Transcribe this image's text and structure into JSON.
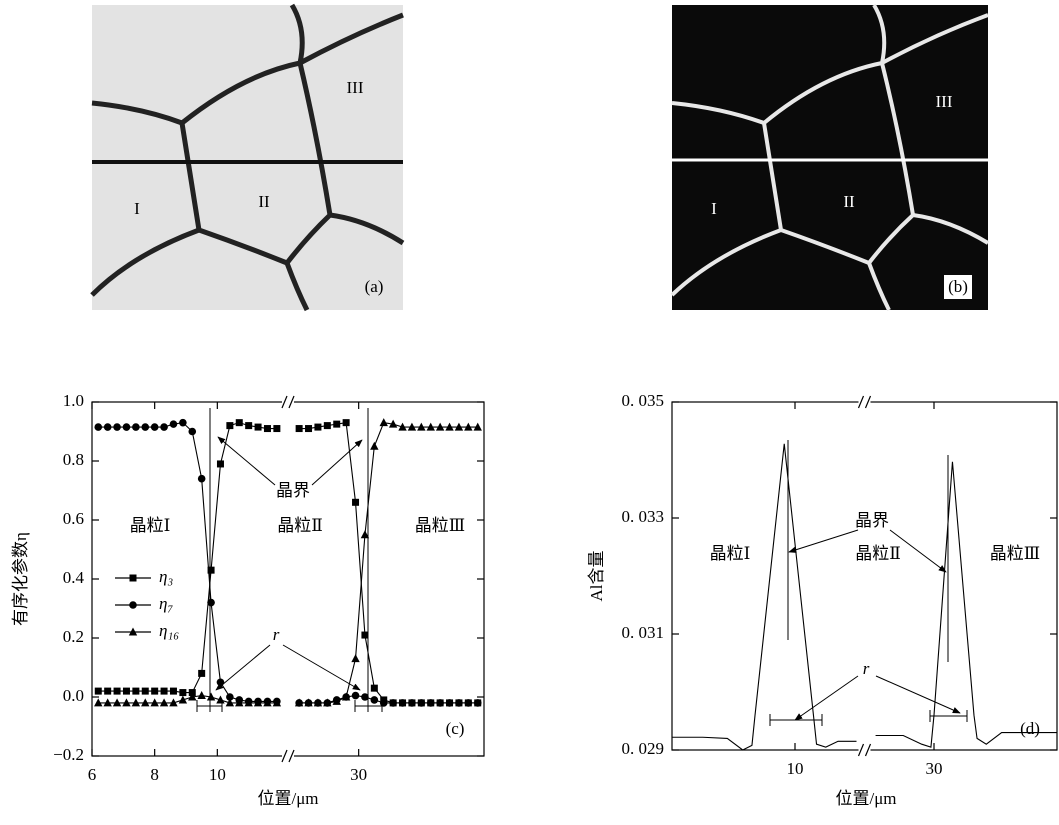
{
  "panels": [
    {
      "label": "(a)",
      "grains": [
        "I",
        "II",
        "III"
      ]
    },
    {
      "label": "(b)",
      "grains": [
        "I",
        "II",
        "III"
      ]
    }
  ],
  "chart_data": [
    {
      "type": "line",
      "panel_label": "(c)",
      "x_label": "位置/μm",
      "y_label": "有序化参数η",
      "xlim": [
        [
          6,
          12
        ],
        [
          28,
          34
        ]
      ],
      "xticks": [
        6,
        8,
        10,
        30
      ],
      "ylim": [
        -0.2,
        1.0
      ],
      "yticks": [
        {
          "value": -0.2,
          "label": "−0.2"
        },
        {
          "value": 0,
          "label": "0.0"
        },
        0.2,
        0.4,
        0.6,
        0.8,
        {
          "value": 1,
          "label": "1.0"
        }
      ],
      "grid": false,
      "boundary_label": "晶界",
      "r_label": "r",
      "grain_labels": [
        "晶粒Ⅰ",
        "晶粒Ⅱ",
        "晶粒Ⅲ"
      ],
      "x": [
        6.2,
        6.5,
        6.8,
        7.1,
        7.4,
        7.7,
        8.0,
        8.3,
        8.6,
        8.9,
        9.2,
        9.5,
        9.8,
        10.1,
        10.4,
        10.7,
        11.0,
        11.3,
        11.6,
        11.9,
        28.1,
        28.4,
        28.7,
        29.0,
        29.3,
        29.6,
        29.9,
        30.2,
        30.5,
        30.8,
        31.1,
        31.4,
        31.7,
        32.0,
        32.3,
        32.6,
        32.9,
        33.2,
        33.5,
        33.8
      ],
      "series": [
        {
          "name": "η₃",
          "color": "#000000",
          "marker": "square",
          "values": [
            0.02,
            0.02,
            0.02,
            0.02,
            0.02,
            0.02,
            0.02,
            0.02,
            0.02,
            0.015,
            0.015,
            0.08,
            0.43,
            0.79,
            0.92,
            0.93,
            0.92,
            0.915,
            0.91,
            0.91,
            0.91,
            0.91,
            0.915,
            0.92,
            0.925,
            0.93,
            0.66,
            0.21,
            0.03,
            -0.01,
            -0.02,
            -0.02,
            -0.02,
            -0.02,
            -0.02,
            -0.02,
            -0.02,
            -0.02,
            -0.02,
            -0.02
          ]
        },
        {
          "name": "η₇",
          "color": "#000000",
          "marker": "circle",
          "values": [
            0.915,
            0.915,
            0.915,
            0.915,
            0.915,
            0.915,
            0.915,
            0.915,
            0.925,
            0.93,
            0.9,
            0.74,
            0.32,
            0.05,
            0.0,
            -0.01,
            -0.015,
            -0.015,
            -0.015,
            -0.015,
            -0.02,
            -0.02,
            -0.02,
            -0.02,
            -0.01,
            0.0,
            0.005,
            0.0,
            -0.01,
            -0.02,
            -0.02,
            -0.02,
            -0.02,
            -0.02,
            -0.02,
            -0.02,
            -0.02,
            -0.02,
            -0.02,
            -0.02
          ]
        },
        {
          "name": "η₁₆",
          "color": "#000000",
          "marker": "triangle",
          "values": [
            -0.02,
            -0.02,
            -0.02,
            -0.02,
            -0.02,
            -0.02,
            -0.02,
            -0.02,
            -0.02,
            -0.01,
            0.0,
            0.005,
            0.0,
            -0.01,
            -0.02,
            -0.02,
            -0.02,
            -0.02,
            -0.02,
            -0.02,
            -0.02,
            -0.02,
            -0.02,
            -0.02,
            -0.015,
            0.0,
            0.13,
            0.55,
            0.85,
            0.93,
            0.925,
            0.915,
            0.915,
            0.915,
            0.915,
            0.915,
            0.915,
            0.915,
            0.915,
            0.915
          ]
        }
      ]
    },
    {
      "type": "line",
      "panel_label": "(d)",
      "x_label": "位置/μm",
      "y_label": "Al含量",
      "xlim": [
        [
          6,
          12
        ],
        [
          28,
          34
        ]
      ],
      "xticks": [
        10,
        30
      ],
      "ylim": [
        0.029,
        0.035
      ],
      "yticks": [
        {
          "value": 0.029,
          "label": "0. 029"
        },
        {
          "value": 0.031,
          "label": "0. 031"
        },
        {
          "value": 0.033,
          "label": "0. 033"
        },
        {
          "value": 0.035,
          "label": "0. 035"
        }
      ],
      "grid": false,
      "boundary_label": "晶界",
      "r_label": "r",
      "grain_labels": [
        "晶粒Ⅰ",
        "晶粒Ⅱ",
        "晶粒Ⅲ"
      ],
      "color": "#000000",
      "x": [
        6,
        7,
        7.8,
        8.3,
        8.6,
        8.7,
        9.65,
        10.6,
        10.7,
        11.0,
        11.4,
        12,
        28.1,
        29,
        29.6,
        29.9,
        30.0,
        30.6,
        31.3,
        31.4,
        31.7,
        32.2,
        33,
        34
      ],
      "values": [
        0.02922,
        0.02922,
        0.0292,
        0.029,
        0.02908,
        0.0296,
        0.03428,
        0.0296,
        0.0291,
        0.02905,
        0.02915,
        0.02915,
        0.02925,
        0.02925,
        0.0291,
        0.02905,
        0.0296,
        0.03397,
        0.0296,
        0.0292,
        0.0291,
        0.0293,
        0.0293,
        0.0293
      ]
    }
  ]
}
